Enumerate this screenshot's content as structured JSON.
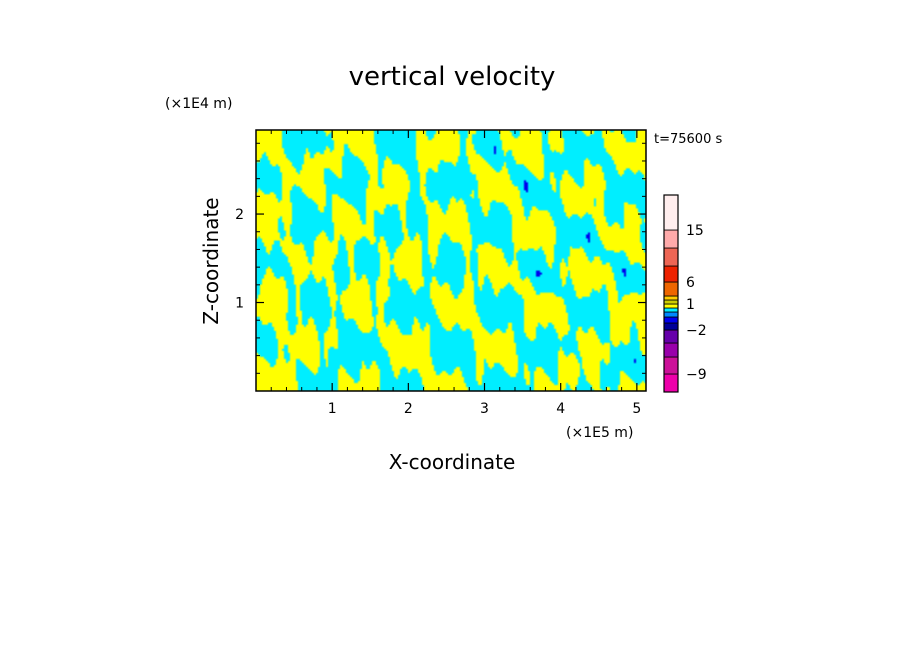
{
  "chart_data": {
    "type": "heatmap",
    "title": "vertical velocity",
    "xlabel": "X-coordinate",
    "ylabel": "Z-coordinate",
    "x_unit": "(×1E5 m)",
    "y_unit": "(×1E4 m)",
    "time_label": "t=75600 s",
    "xlim": [
      0,
      5.12
    ],
    "ylim": [
      0,
      2.95
    ],
    "x_ticks": [
      1,
      2,
      3,
      4,
      5
    ],
    "y_ticks": [
      1,
      2
    ],
    "x_tick_labels": [
      "1",
      "2",
      "3",
      "4",
      "5"
    ],
    "y_tick_labels": [
      "1",
      "2"
    ],
    "colorbar": {
      "levels": [
        -12,
        -9,
        -6,
        -3,
        -2,
        -1,
        -0.5,
        0,
        0.5,
        1,
        2,
        3,
        6,
        9,
        12,
        15,
        20
      ],
      "colors": [
        "#ee00aa",
        "#cc1199",
        "#9900aa",
        "#6600aa",
        "#000099",
        "#0000ee",
        "#0088ff",
        "#00eeff",
        "#ffff00",
        "#cccc00",
        "#ffcc00",
        "#ee6600",
        "#ee2200",
        "#ee6655",
        "#ffaaaa",
        "#ffeeee"
      ],
      "labels": [
        {
          "value": -9,
          "text": "−9"
        },
        {
          "value": -2,
          "text": "−2"
        },
        {
          "value": 1,
          "text": "1"
        },
        {
          "value": 6,
          "text": "6"
        },
        {
          "value": 15,
          "text": "15"
        }
      ]
    },
    "field_colors": {
      "positive": "#ffff00",
      "negative": "#00eeff",
      "strong_negative": "#0000ee"
    }
  }
}
